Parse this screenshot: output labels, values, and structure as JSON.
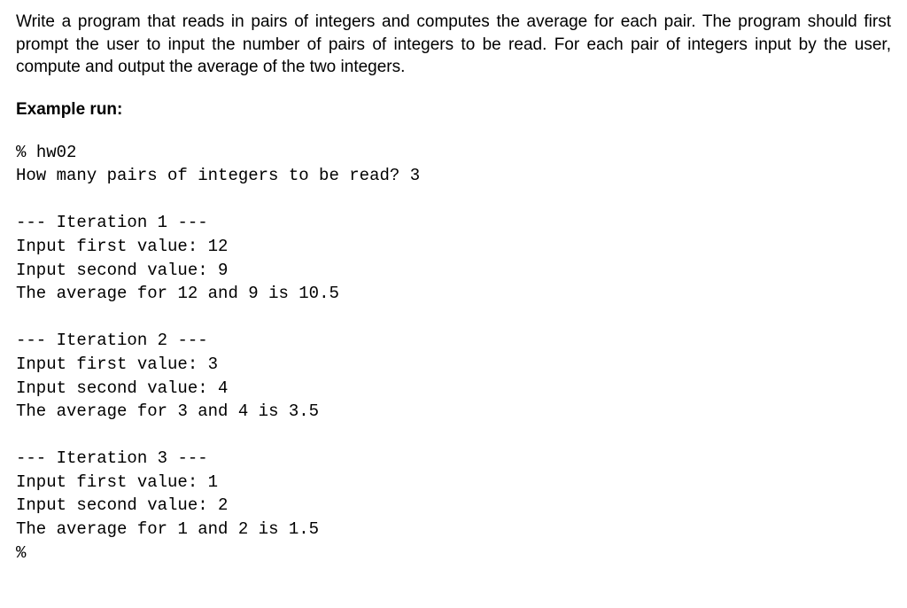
{
  "instructions": "Write a program that reads in pairs of integers and computes the average for each pair. The program should first prompt the user to input the number of pairs of integers to be read. For each pair of integers input by the user, compute and output the average of the two integers.",
  "example_heading": "Example run:",
  "prompt_lead": "% ",
  "program_name": "hw02",
  "count_prompt": "How many pairs of integers to be read? ",
  "count_value": "3",
  "iter_label_prefix": "--- Iteration ",
  "iter_label_suffix": " ---",
  "first_prompt": "Input first value: ",
  "second_prompt": "Input second value: ",
  "avg_prefix": "The average for ",
  "avg_mid": " and ",
  "avg_is": " is ",
  "end_prompt": "%",
  "iterations": [
    {
      "n": "1",
      "first": "12",
      "second": "9",
      "avg": "10.5"
    },
    {
      "n": "2",
      "first": "3",
      "second": "4",
      "avg": "3.5"
    },
    {
      "n": "3",
      "first": "1",
      "second": "2",
      "avg": "1.5"
    }
  ],
  "colors": {
    "background": "#ffffff",
    "text": "#000000"
  },
  "typography": {
    "body_font": "Arial",
    "body_size_pt": 14,
    "code_font": "Courier New",
    "code_size_pt": 14
  }
}
